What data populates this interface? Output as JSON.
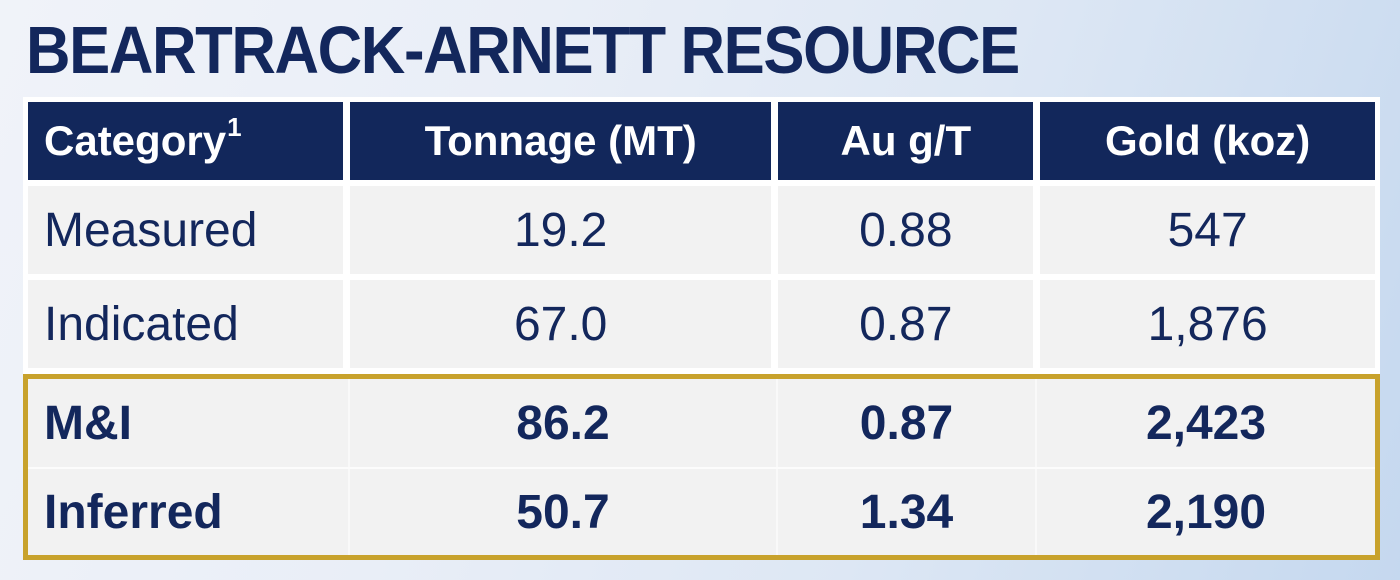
{
  "slide": {
    "title": "BEARTRACK-ARNETT RESOURCE"
  },
  "table": {
    "headers": {
      "category": "Category",
      "category_superscript": "1",
      "tonnage": "Tonnage (MT)",
      "grade": "Au g/T",
      "gold": "Gold (koz)"
    },
    "rows": [
      {
        "category": "Measured",
        "tonnage": "19.2",
        "grade": "0.88",
        "gold": "547"
      },
      {
        "category": "Indicated",
        "tonnage": "67.0",
        "grade": "0.87",
        "gold": "1,876"
      },
      {
        "category": "M&I",
        "tonnage": "86.2",
        "grade": "0.87",
        "gold": "2,423"
      },
      {
        "category": "Inferred",
        "tonnage": "50.7",
        "grade": "1.34",
        "gold": "2,190"
      }
    ],
    "highlight": {
      "highlighted_rows": [
        "M&I",
        "Inferred"
      ],
      "border_color": "#C8A22C"
    }
  },
  "colors": {
    "header_bg": "#12275B",
    "text_navy": "#13275C",
    "row_bg": "#F2F2F2",
    "highlight_border": "#C8A22C",
    "background_left": "#F0F3F9",
    "background_right": "#C5D8EF"
  }
}
